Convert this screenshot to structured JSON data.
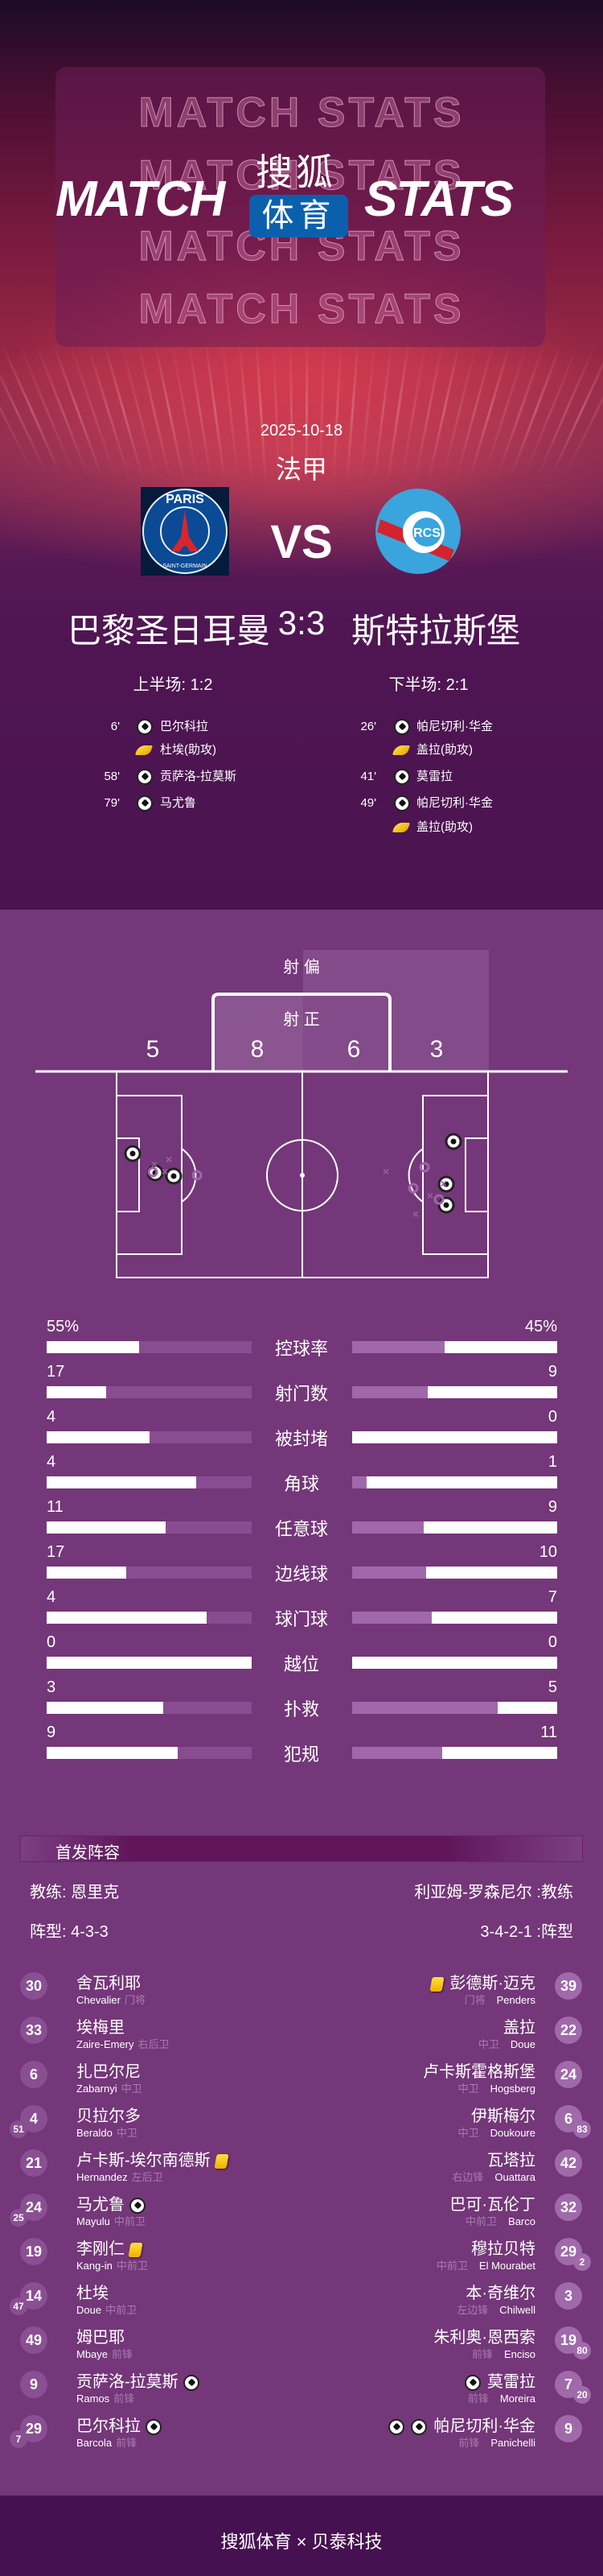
{
  "header": {
    "title_left": "MATCH",
    "title_right": "STATS",
    "ghost_text": "MATCH STATS",
    "brand_top": "搜狐",
    "brand_box": "体育",
    "brand_box_color": "#0b60ad"
  },
  "match": {
    "date": "2025-10-18",
    "league": "法甲",
    "vs": "VS",
    "home": {
      "name": "巴黎圣日耳曼",
      "logo_text": "PARIS SAINT-GERMAIN"
    },
    "away": {
      "name": "斯特拉斯堡",
      "logo_text": "RACING CLUB DE STRASBOURG FOOTBALL RCS"
    },
    "score": "3:3",
    "first_half": "上半场: 1:2",
    "second_half": "下半场: 2:1"
  },
  "events": {
    "home": [
      {
        "minute": "6'",
        "icon": "goal-ball-icon",
        "text": "巴尔科拉"
      },
      {
        "minute": "",
        "icon": "assist-boot-icon",
        "text": "杜埃(助攻)"
      },
      {
        "minute": "58'",
        "icon": "goal-ball-icon",
        "text": "贡萨洛-拉莫斯"
      },
      {
        "minute": "79'",
        "icon": "goal-ball-icon",
        "text": "马尤鲁"
      }
    ],
    "away": [
      {
        "minute": "26'",
        "icon": "goal-ball-icon",
        "text": "帕尼切利·华金"
      },
      {
        "minute": "",
        "icon": "assist-boot-icon",
        "text": "盖拉(助攻)"
      },
      {
        "minute": "41'",
        "icon": "goal-ball-icon",
        "text": "莫雷拉"
      },
      {
        "minute": "49'",
        "icon": "goal-ball-icon",
        "text": "帕尼切利·华金"
      },
      {
        "minute": "",
        "icon": "assist-boot-icon",
        "text": "盖拉(助攻)"
      }
    ]
  },
  "shots": {
    "off_target_label": "射 偏",
    "on_target_label": "射 正",
    "home_off": "5",
    "home_on": "8",
    "away_on": "6",
    "away_off": "3"
  },
  "stats": [
    {
      "label": "控球率",
      "home": "55%",
      "away": "45%",
      "home_fill": 0.45,
      "away_fill": 0.45
    },
    {
      "label": "射门数",
      "home": "17",
      "away": "9",
      "home_fill": 0.29,
      "away_fill": 0.37
    },
    {
      "label": "被封堵",
      "home": "4",
      "away": "0",
      "home_fill": 0.5,
      "away_fill": 0
    },
    {
      "label": "角球",
      "home": "4",
      "away": "1",
      "home_fill": 0.73,
      "away_fill": 0.07
    },
    {
      "label": "任意球",
      "home": "11",
      "away": "9",
      "home_fill": 0.58,
      "away_fill": 0.35
    },
    {
      "label": "边线球",
      "home": "17",
      "away": "10",
      "home_fill": 0.39,
      "away_fill": 0.36
    },
    {
      "label": "球门球",
      "home": "4",
      "away": "7",
      "home_fill": 0.78,
      "away_fill": 0.39
    },
    {
      "label": "越位",
      "home": "0",
      "away": "0",
      "home_fill": 1,
      "away_fill": 0
    },
    {
      "label": "扑救",
      "home": "3",
      "away": "5",
      "home_fill": 0.57,
      "away_fill": 0.71
    },
    {
      "label": "犯规",
      "home": "9",
      "away": "11",
      "home_fill": 0.64,
      "away_fill": 0.44
    }
  ],
  "lineup": {
    "title": "首发阵容",
    "home_coach": "教练: 恩里克",
    "away_coach": "利亚姆-罗森尼尔 :教练",
    "home_formation": "阵型: 4-3-3",
    "away_formation": "3-4-2-1 :阵型",
    "home": [
      {
        "num": "30",
        "sub": "",
        "name": "舍瓦利耶",
        "en": "Chevalier",
        "pos": "门将",
        "icons": []
      },
      {
        "num": "33",
        "sub": "",
        "name": "埃梅里",
        "en": "Zaire-Emery",
        "pos": "右后卫",
        "icons": []
      },
      {
        "num": "6",
        "sub": "",
        "name": "扎巴尔尼",
        "en": "Zabarnyi",
        "pos": "中卫",
        "icons": []
      },
      {
        "num": "4",
        "sub": "51",
        "name": "贝拉尔多",
        "en": "Beraldo",
        "pos": "中卫",
        "icons": []
      },
      {
        "num": "21",
        "sub": "",
        "name": "卢卡斯-埃尔南德斯",
        "en": "Hernandez",
        "pos": "左后卫",
        "icons": [
          "yellow-card"
        ]
      },
      {
        "num": "24",
        "sub": "25",
        "name": "马尤鲁",
        "en": "Mayulu",
        "pos": "中前卫",
        "icons": [
          "goal"
        ]
      },
      {
        "num": "19",
        "sub": "",
        "name": "李刚仁",
        "en": "Kang-in",
        "pos": "中前卫",
        "icons": [
          "yellow-card"
        ]
      },
      {
        "num": "14",
        "sub": "47",
        "name": "杜埃",
        "en": "Doue",
        "pos": "中前卫",
        "icons": []
      },
      {
        "num": "49",
        "sub": "",
        "name": "姆巴耶",
        "en": "Mbaye",
        "pos": "前锋",
        "icons": []
      },
      {
        "num": "9",
        "sub": "",
        "name": "贡萨洛-拉莫斯",
        "en": "Ramos",
        "pos": "前锋",
        "icons": [
          "goal"
        ]
      },
      {
        "num": "29",
        "sub": "7",
        "name": "巴尔科拉",
        "en": "Barcola",
        "pos": "前锋",
        "icons": [
          "goal"
        ]
      }
    ],
    "away": [
      {
        "num": "39",
        "sub": "",
        "name": "彭德斯·迈克",
        "en": "Penders",
        "pos": "门将",
        "icons": [
          "yellow-card"
        ]
      },
      {
        "num": "22",
        "sub": "",
        "name": "盖拉",
        "en": "Doue",
        "pos": "中卫",
        "icons": []
      },
      {
        "num": "24",
        "sub": "",
        "name": "卢卡斯霍格斯堡",
        "en": "Hogsberg",
        "pos": "中卫",
        "icons": []
      },
      {
        "num": "6",
        "sub": "83",
        "name": "伊斯梅尔",
        "en": "Doukoure",
        "pos": "中卫",
        "icons": []
      },
      {
        "num": "42",
        "sub": "",
        "name": "瓦塔拉",
        "en": "Ouattara",
        "pos": "右边锋",
        "icons": []
      },
      {
        "num": "32",
        "sub": "",
        "name": "巴可·瓦伦丁",
        "en": "Barco",
        "pos": "中前卫",
        "icons": []
      },
      {
        "num": "29",
        "sub": "2",
        "name": "穆拉贝特",
        "en": "El Mourabet",
        "pos": "中前卫",
        "icons": []
      },
      {
        "num": "3",
        "sub": "",
        "name": "本·奇维尔",
        "en": "Chilwell",
        "pos": "左边锋",
        "icons": []
      },
      {
        "num": "19",
        "sub": "80",
        "name": "朱利奥·恩西索",
        "en": "Enciso",
        "pos": "前锋",
        "icons": []
      },
      {
        "num": "7",
        "sub": "20",
        "name": "莫雷拉",
        "en": "Moreira",
        "pos": "前锋",
        "icons": [
          "goal"
        ]
      },
      {
        "num": "9",
        "sub": "",
        "name": "帕尼切利·华金",
        "en": "Panichelli",
        "pos": "前锋",
        "icons": [
          "goal",
          "goal"
        ]
      }
    ]
  },
  "footer": {
    "text": "搜狐体育 × 贝泰科技"
  },
  "colors": {
    "section_bg": "#743779",
    "footer_bg": "#461150",
    "home_circle": "#8a4f93",
    "away_circle": "#a06aaa"
  }
}
